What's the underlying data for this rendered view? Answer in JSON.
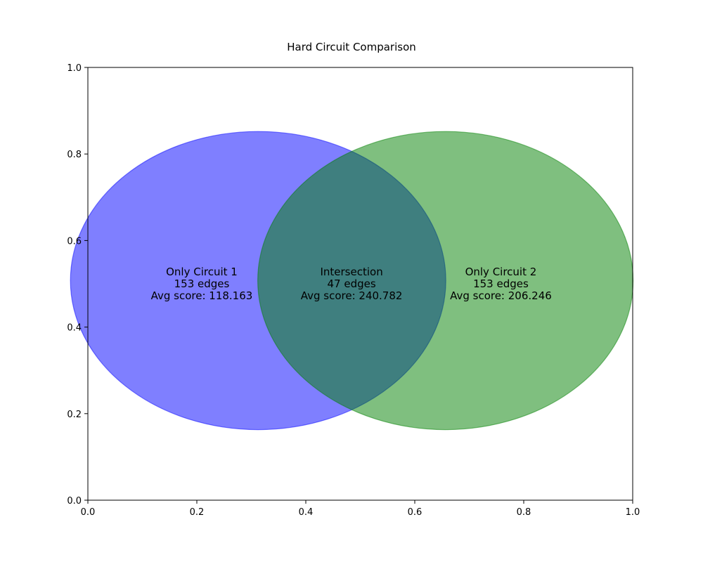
{
  "chart_data": {
    "type": "venn",
    "title": "Hard Circuit Comparison",
    "xlim": [
      0.0,
      1.0
    ],
    "ylim": [
      0.0,
      1.0
    ],
    "x_ticks": [
      "0.0",
      "0.2",
      "0.4",
      "0.6",
      "0.8",
      "1.0"
    ],
    "y_ticks": [
      "0.0",
      "0.2",
      "0.4",
      "0.6",
      "0.8",
      "1.0"
    ],
    "sets": [
      {
        "id": "circuit-1",
        "center": [
          0.3125,
          0.5075
        ],
        "radius": 0.3445,
        "color": "#0000ff",
        "opacity": 0.5
      },
      {
        "id": "circuit-2",
        "center": [
          0.6563,
          0.5075
        ],
        "radius": 0.3445,
        "color": "#008000",
        "opacity": 0.5
      }
    ],
    "regions": [
      {
        "id": "only-circuit-1",
        "lines": [
          "Only Circuit 1",
          "153 edges",
          "Avg score: 118.163"
        ],
        "position": [
          0.209,
          0.5
        ]
      },
      {
        "id": "intersection",
        "lines": [
          "Intersection",
          "47 edges",
          "Avg score: 240.782"
        ],
        "position": [
          0.484,
          0.5
        ]
      },
      {
        "id": "only-circuit-2",
        "lines": [
          "Only Circuit 2",
          "153 edges",
          "Avg score: 206.246"
        ],
        "position": [
          0.758,
          0.5
        ]
      }
    ]
  }
}
